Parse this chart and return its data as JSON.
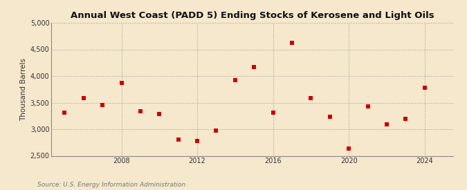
{
  "title": "Annual West Coast (PADD 5) Ending Stocks of Kerosene and Light Oils",
  "ylabel": "Thousand Barrels",
  "source": "Source: U.S. Energy Information Administration",
  "background_color": "#f5e8cc",
  "plot_background_color": "#f5e8cc",
  "point_color": "#cc0000",
  "ylim": [
    2500,
    5000
  ],
  "yticks": [
    2500,
    3000,
    3500,
    4000,
    4500,
    5000
  ],
  "ytick_labels": [
    "2,500",
    "3,000",
    "3,500",
    "4,000",
    "4,500",
    "5,000"
  ],
  "xticks": [
    2008,
    2012,
    2016,
    2020,
    2024
  ],
  "years": [
    2005,
    2006,
    2007,
    2008,
    2009,
    2010,
    2011,
    2012,
    2013,
    2014,
    2015,
    2016,
    2017,
    2018,
    2019,
    2020,
    2021,
    2022,
    2023,
    2024
  ],
  "values": [
    3310,
    3580,
    3450,
    3870,
    3340,
    3280,
    2810,
    2780,
    2970,
    3920,
    4170,
    3310,
    4620,
    3590,
    3240,
    2640,
    3430,
    3090,
    3200,
    3780
  ]
}
